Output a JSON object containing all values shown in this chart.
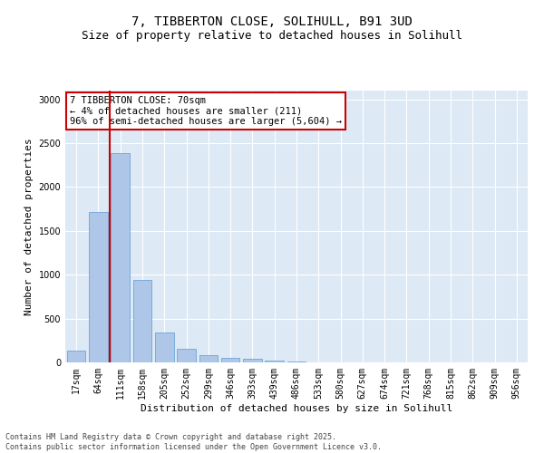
{
  "title_line1": "7, TIBBERTON CLOSE, SOLIHULL, B91 3UD",
  "title_line2": "Size of property relative to detached houses in Solihull",
  "xlabel": "Distribution of detached houses by size in Solihull",
  "ylabel": "Number of detached properties",
  "categories": [
    "17sqm",
    "64sqm",
    "111sqm",
    "158sqm",
    "205sqm",
    "252sqm",
    "299sqm",
    "346sqm",
    "393sqm",
    "439sqm",
    "486sqm",
    "533sqm",
    "580sqm",
    "627sqm",
    "674sqm",
    "721sqm",
    "768sqm",
    "815sqm",
    "862sqm",
    "909sqm",
    "956sqm"
  ],
  "values": [
    130,
    1720,
    2390,
    940,
    340,
    160,
    85,
    50,
    40,
    25,
    10,
    5,
    3,
    0,
    0,
    0,
    0,
    0,
    0,
    0,
    0
  ],
  "bar_color": "#aec6e8",
  "bar_edge_color": "#5b9bd5",
  "property_line_x": 1.5,
  "annotation_title": "7 TIBBERTON CLOSE: 70sqm",
  "annotation_line2": "← 4% of detached houses are smaller (211)",
  "annotation_line3": "96% of semi-detached houses are larger (5,604) →",
  "annotation_box_color": "#cc0000",
  "vline_color": "#cc0000",
  "ylim": [
    0,
    3100
  ],
  "yticks": [
    0,
    500,
    1000,
    1500,
    2000,
    2500,
    3000
  ],
  "footer_line1": "Contains HM Land Registry data © Crown copyright and database right 2025.",
  "footer_line2": "Contains public sector information licensed under the Open Government Licence v3.0.",
  "bg_color": "#ffffff",
  "plot_bg_color": "#dde9f5",
  "grid_color": "#ffffff",
  "title_fontsize": 10,
  "subtitle_fontsize": 9,
  "axis_label_fontsize": 8,
  "tick_fontsize": 7,
  "footer_fontsize": 6,
  "annotation_fontsize": 7.5
}
